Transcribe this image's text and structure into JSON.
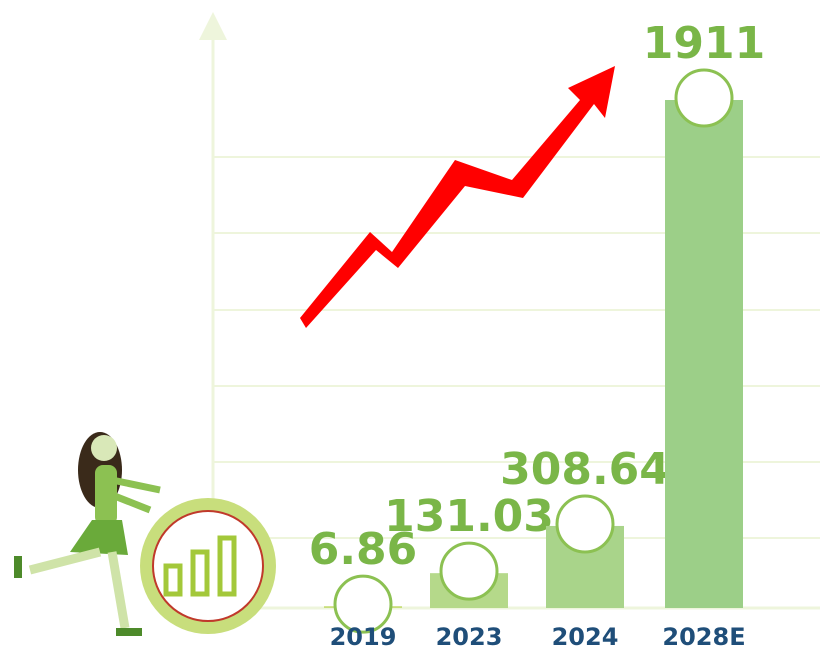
{
  "chart_data": {
    "type": "bar",
    "categories": [
      "2019",
      "2023",
      "2024",
      "2028E"
    ],
    "values": [
      6.86,
      131.03,
      308.64,
      1911
    ],
    "colors": [
      "#c8de7c",
      "#b5d98a",
      "#a9d48a",
      "#9ccf88"
    ],
    "grid": true
  }
}
